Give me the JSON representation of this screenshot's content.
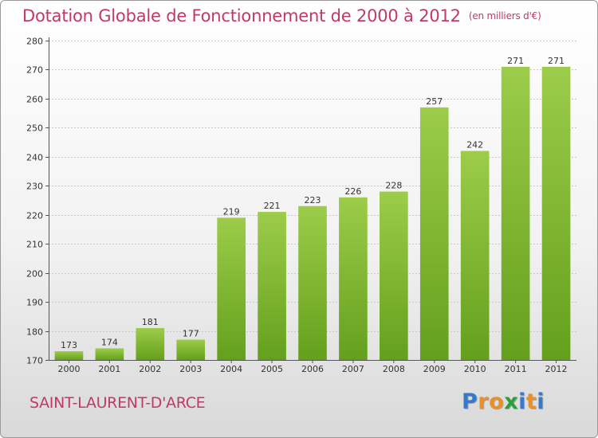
{
  "title": "Dotation Globale de Fonctionnement de 2000 à 2012",
  "unit_note": "(en milliers d'€)",
  "commune": "SAINT-LAURENT-D'ARCE",
  "logo": {
    "letters": [
      {
        "char": "P",
        "color": "#3a78c9"
      },
      {
        "char": "r",
        "color": "#e8902a"
      },
      {
        "char": "o",
        "color": "#e8902a"
      },
      {
        "char": "x",
        "color": "#2e9e3a"
      },
      {
        "char": "i",
        "color": "#3a78c9"
      },
      {
        "char": "t",
        "color": "#e8902a"
      },
      {
        "char": "i",
        "color": "#3a78c9"
      }
    ]
  },
  "colors": {
    "bar_light": "#9ccc4a",
    "bar_dark": "#64a01c",
    "title": "#c0396b",
    "grid": "#c8c8c8"
  },
  "chart_data": {
    "type": "bar",
    "title": "Dotation Globale de Fonctionnement de 2000 à 2012",
    "subtitle": "(en milliers d'€)",
    "xlabel": "",
    "ylabel": "",
    "categories": [
      "2000",
      "2001",
      "2002",
      "2003",
      "2004",
      "2005",
      "2006",
      "2007",
      "2008",
      "2009",
      "2010",
      "2011",
      "2012"
    ],
    "values": [
      173,
      174,
      181,
      177,
      219,
      221,
      223,
      226,
      228,
      257,
      242,
      271,
      271
    ],
    "ylim": [
      170,
      280
    ],
    "yticks": [
      170,
      180,
      190,
      200,
      210,
      220,
      230,
      240,
      250,
      260,
      270,
      280
    ],
    "grid": true,
    "data_labels": true
  }
}
